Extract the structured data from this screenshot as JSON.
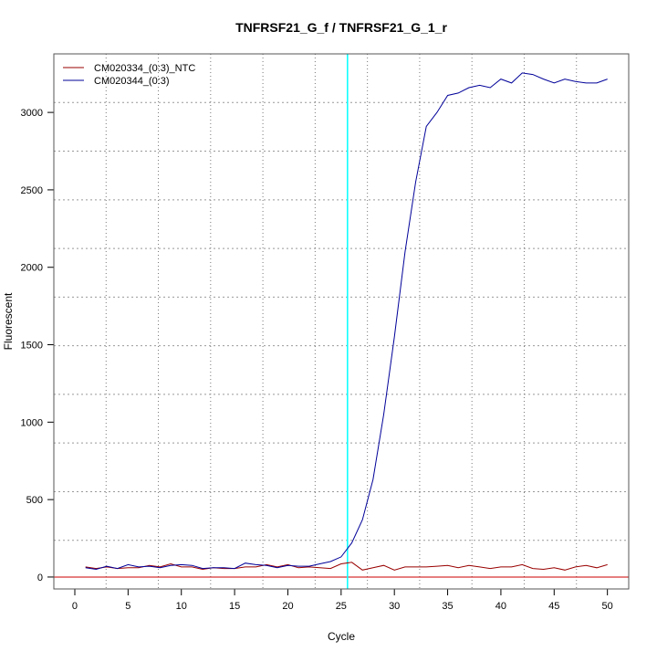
{
  "chart_data": {
    "type": "line",
    "title": "TNFRSF21_G_f / TNFRSF21_G_1_r",
    "xlabel": "Cycle",
    "ylabel": "Fluorescent",
    "xlim": [
      -1.97,
      52
    ],
    "ylim": [
      -77,
      3378
    ],
    "xticks": [
      0,
      5,
      10,
      15,
      20,
      25,
      30,
      35,
      40,
      45,
      50
    ],
    "yticks": [
      0,
      500,
      1000,
      1500,
      2000,
      2500,
      3000
    ],
    "grid": true,
    "legend_position": "top-left",
    "threshold_cycle": 25.6,
    "baseline_value": 0,
    "threshold_color": "#00ffff",
    "baseline_color": "#cc0000",
    "x": [
      1,
      2,
      3,
      4,
      5,
      6,
      7,
      8,
      9,
      10,
      11,
      12,
      13,
      14,
      15,
      16,
      17,
      18,
      19,
      20,
      21,
      22,
      23,
      24,
      25,
      26,
      27,
      28,
      29,
      30,
      31,
      32,
      33,
      34,
      35,
      36,
      37,
      38,
      39,
      40,
      41,
      42,
      43,
      44,
      45,
      46,
      47,
      48,
      49,
      50
    ],
    "series": [
      {
        "name": "CM020334_(0:3)_NTC",
        "color": "#990000",
        "values": [
          65,
          55,
          65,
          55,
          60,
          60,
          75,
          65,
          85,
          65,
          65,
          50,
          60,
          55,
          55,
          65,
          65,
          80,
          65,
          80,
          60,
          65,
          60,
          55,
          85,
          95,
          45,
          60,
          75,
          45,
          65,
          65,
          65,
          70,
          75,
          60,
          75,
          65,
          55,
          65,
          65,
          80,
          55,
          50,
          60,
          45,
          65,
          75,
          60,
          80
        ]
      },
      {
        "name": "CM020344_(0:3)",
        "color": "#000099",
        "values": [
          60,
          50,
          70,
          55,
          80,
          65,
          70,
          60,
          75,
          80,
          75,
          55,
          60,
          60,
          55,
          90,
          80,
          75,
          60,
          75,
          70,
          70,
          85,
          100,
          130,
          220,
          370,
          630,
          1050,
          1550,
          2100,
          2550,
          2910,
          3000,
          3110,
          3125,
          3160,
          3175,
          3160,
          3215,
          3190,
          3255,
          3245,
          3215,
          3190,
          3215,
          3200,
          3190,
          3190,
          3215
        ]
      }
    ]
  }
}
